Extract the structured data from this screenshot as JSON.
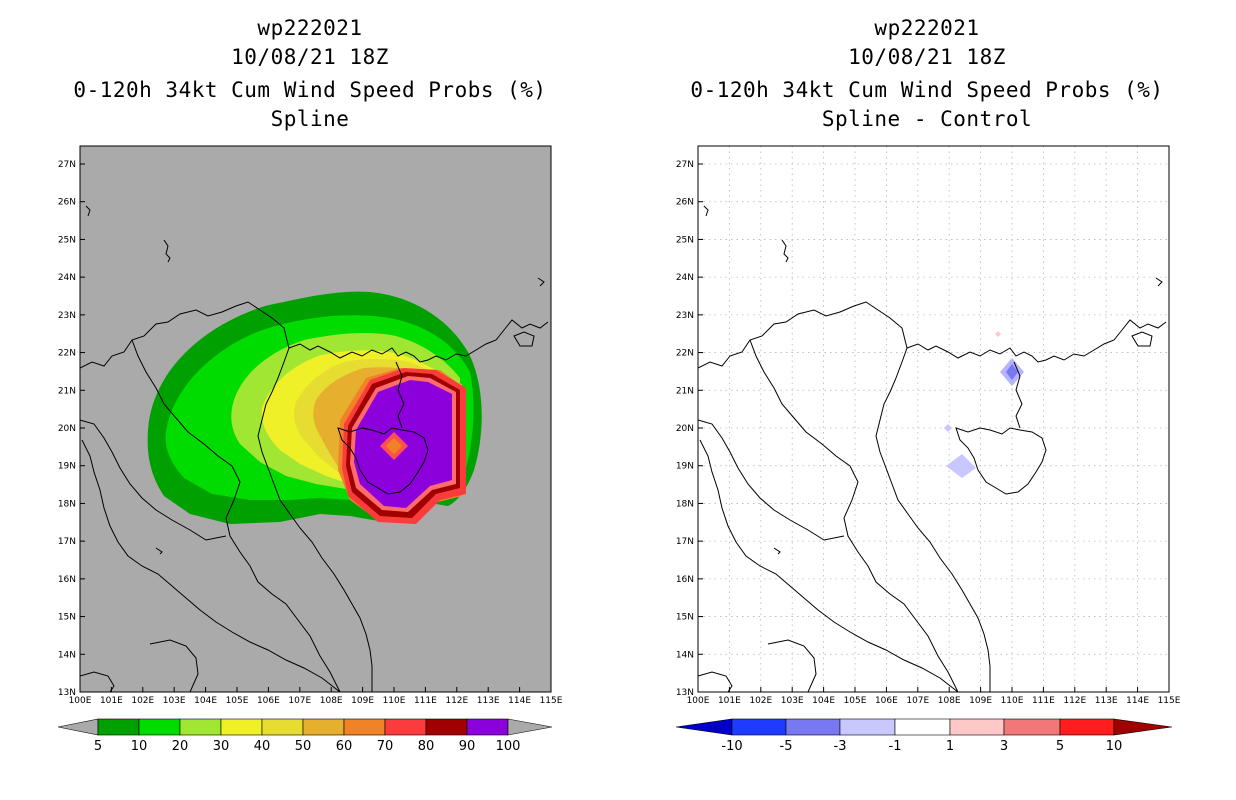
{
  "left_panel": {
    "title": "wp222021",
    "date": "10/08/21 18Z",
    "subtitle": "0-120h 34kt Cum Wind Speed Probs (%)",
    "scheme": "Spline"
  },
  "right_panel": {
    "title": "wp222021",
    "date": "10/08/21 18Z",
    "subtitle": "0-120h 34kt Cum Wind Speed Probs (%)",
    "scheme": "Spline - Control"
  },
  "axes": {
    "lat_labels": [
      "27N",
      "26N",
      "25N",
      "24N",
      "23N",
      "22N",
      "21N",
      "20N",
      "19N",
      "18N",
      "17N",
      "16N",
      "15N",
      "14N",
      "13N"
    ],
    "lon_labels": [
      "100E",
      "101E",
      "102E",
      "103E",
      "104E",
      "105E",
      "106E",
      "107E",
      "108E",
      "109E",
      "110E",
      "111E",
      "112E",
      "113E",
      "114E",
      "115E"
    ]
  },
  "left_colorbar": {
    "labels": [
      "5",
      "10",
      "20",
      "30",
      "40",
      "50",
      "60",
      "70",
      "80",
      "90",
      "100"
    ],
    "colors": [
      "#00a000",
      "#00dc00",
      "#a0e632",
      "#f0f028",
      "#e6dc32",
      "#e6af2d",
      "#f08228",
      "#fa3c3c",
      "#a00000",
      "#8c00dc"
    ]
  },
  "right_colorbar": {
    "labels": [
      "-10",
      "-5",
      "-3",
      "-1",
      "1",
      "3",
      "5",
      "10"
    ],
    "colors": [
      "#0000c8",
      "#1e3cff",
      "#7878f0",
      "#c8c8ff",
      "#ffffff",
      "#ffc8c8",
      "#f07878",
      "#ff1e1e",
      "#a00000"
    ]
  },
  "colors": {
    "map_background_left": "#aaaaaa",
    "map_background_right": "#ffffff",
    "coastline": "#000000"
  }
}
